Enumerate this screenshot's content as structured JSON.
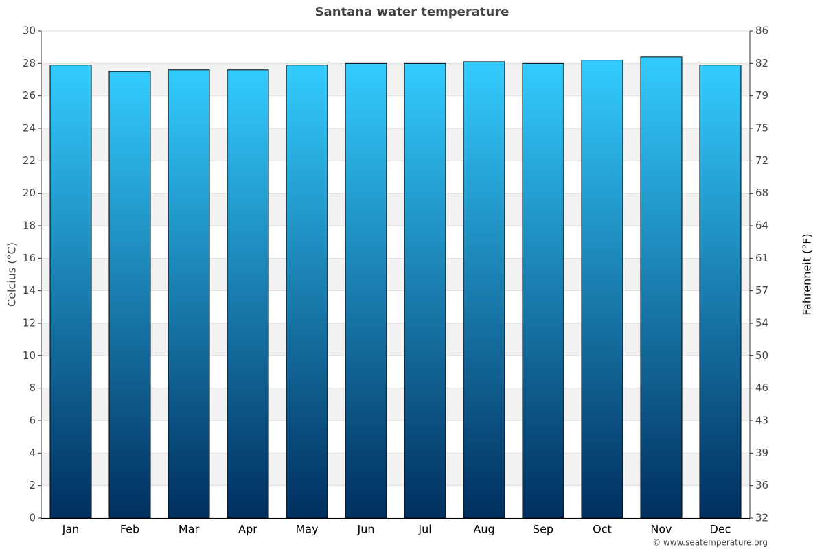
{
  "chart_data": {
    "type": "bar",
    "title": "Santana water temperature",
    "y_label": "Celcius (°C)",
    "y2_label": "Fahrenheit (°F)",
    "credit": "© www.seatemperature.org",
    "categories": [
      "Jan",
      "Feb",
      "Mar",
      "Apr",
      "May",
      "Jun",
      "Jul",
      "Aug",
      "Sep",
      "Oct",
      "Nov",
      "Dec"
    ],
    "values": [
      27.9,
      27.5,
      27.6,
      27.6,
      27.9,
      28.0,
      28.0,
      28.1,
      28.0,
      28.2,
      28.4,
      27.9
    ],
    "color_top": "#33ccff",
    "color_bottom": "#002f5f",
    "ylim": [
      0,
      30
    ],
    "yticks": [
      0,
      2,
      4,
      6,
      8,
      10,
      12,
      14,
      16,
      18,
      20,
      22,
      24,
      26,
      28,
      30
    ],
    "y2lim": [
      32,
      86
    ],
    "y2ticks": [
      32,
      {
        "value": 35.6,
        "label": "36"
      },
      {
        "value": 39.2,
        "label": "39"
      },
      {
        "value": 42.8,
        "label": "43"
      },
      {
        "value": 46.4,
        "label": "46"
      },
      50,
      {
        "value": 53.6,
        "label": "54"
      },
      {
        "value": 57.2,
        "label": "57"
      },
      {
        "value": 60.8,
        "label": "61"
      },
      {
        "value": 64.4,
        "label": "64"
      },
      68,
      {
        "value": 71.6,
        "label": "72"
      },
      {
        "value": 75.2,
        "label": "75"
      },
      {
        "value": 78.8,
        "label": "79"
      },
      {
        "value": 82.4,
        "label": "82"
      },
      86
    ],
    "grid": true
  }
}
